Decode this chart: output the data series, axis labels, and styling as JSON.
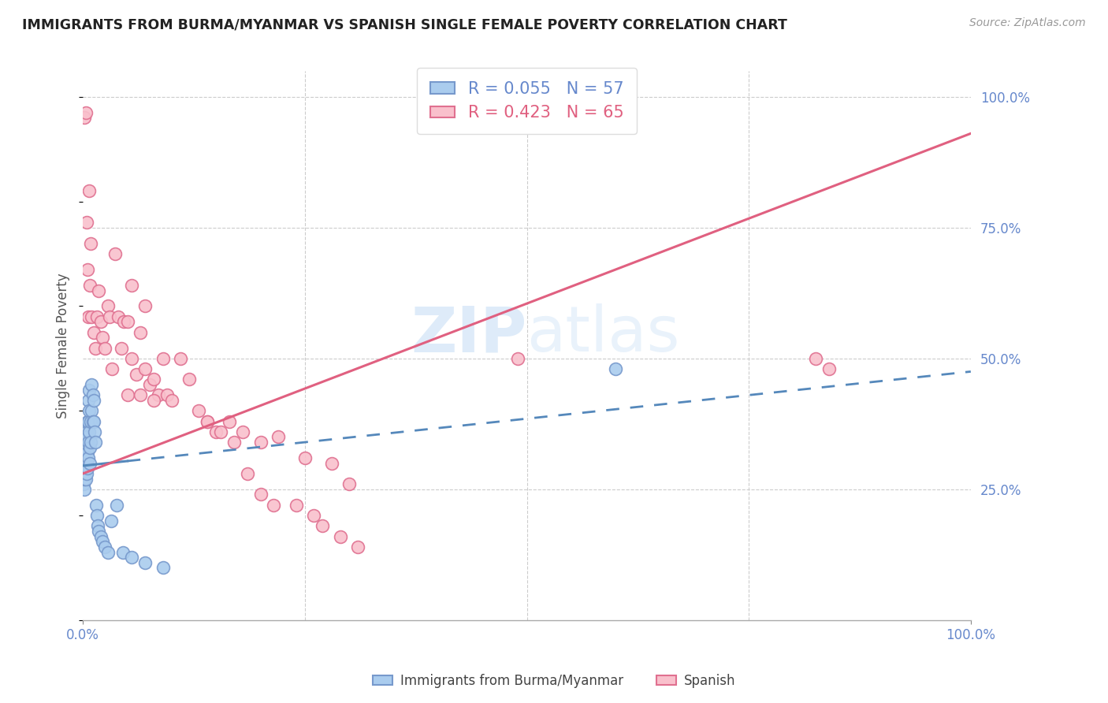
{
  "title": "IMMIGRANTS FROM BURMA/MYANMAR VS SPANISH SINGLE FEMALE POVERTY CORRELATION CHART",
  "source": "Source: ZipAtlas.com",
  "ylabel": "Single Female Poverty",
  "watermark_zip": "ZIP",
  "watermark_atlas": "atlas",
  "r_burma": 0.055,
  "n_burma": 57,
  "r_spanish": 0.423,
  "n_spanish": 65,
  "xlim": [
    0.0,
    1.0
  ],
  "ylim": [
    0.0,
    1.05
  ],
  "color_burma_fill": "#AACCEE",
  "color_burma_edge": "#7799CC",
  "color_spanish_fill": "#F9C0CC",
  "color_spanish_edge": "#E07090",
  "color_burma_line": "#5588BB",
  "color_spanish_line": "#E06080",
  "color_axis": "#6688CC",
  "legend_labels": [
    "Immigrants from Burma/Myanmar",
    "Spanish"
  ],
  "burma_x": [
    0.001,
    0.001,
    0.001,
    0.001,
    0.002,
    0.002,
    0.002,
    0.002,
    0.002,
    0.003,
    0.003,
    0.003,
    0.003,
    0.003,
    0.003,
    0.004,
    0.004,
    0.004,
    0.004,
    0.005,
    0.005,
    0.005,
    0.005,
    0.006,
    0.006,
    0.006,
    0.006,
    0.007,
    0.007,
    0.007,
    0.008,
    0.008,
    0.009,
    0.009,
    0.01,
    0.01,
    0.011,
    0.011,
    0.012,
    0.012,
    0.013,
    0.014,
    0.015,
    0.016,
    0.017,
    0.018,
    0.02,
    0.022,
    0.025,
    0.028,
    0.032,
    0.038,
    0.045,
    0.055,
    0.07,
    0.09,
    0.6
  ],
  "burma_y": [
    0.28,
    0.32,
    0.3,
    0.26,
    0.35,
    0.3,
    0.28,
    0.25,
    0.27,
    0.34,
    0.31,
    0.29,
    0.27,
    0.32,
    0.3,
    0.36,
    0.33,
    0.3,
    0.28,
    0.38,
    0.35,
    0.32,
    0.29,
    0.42,
    0.38,
    0.34,
    0.31,
    0.44,
    0.4,
    0.36,
    0.33,
    0.3,
    0.38,
    0.34,
    0.45,
    0.4,
    0.43,
    0.38,
    0.42,
    0.38,
    0.36,
    0.34,
    0.22,
    0.2,
    0.18,
    0.17,
    0.16,
    0.15,
    0.14,
    0.13,
    0.19,
    0.22,
    0.13,
    0.12,
    0.11,
    0.1,
    0.48
  ],
  "spanish_x": [
    0.002,
    0.003,
    0.004,
    0.005,
    0.006,
    0.007,
    0.008,
    0.009,
    0.01,
    0.012,
    0.014,
    0.016,
    0.018,
    0.02,
    0.022,
    0.025,
    0.028,
    0.03,
    0.033,
    0.036,
    0.04,
    0.043,
    0.046,
    0.05,
    0.055,
    0.06,
    0.065,
    0.07,
    0.075,
    0.08,
    0.085,
    0.09,
    0.095,
    0.1,
    0.11,
    0.12,
    0.13,
    0.14,
    0.15,
    0.165,
    0.18,
    0.2,
    0.22,
    0.25,
    0.28,
    0.3,
    0.14,
    0.155,
    0.17,
    0.185,
    0.2,
    0.215,
    0.05,
    0.065,
    0.08,
    0.055,
    0.07,
    0.24,
    0.26,
    0.27,
    0.29,
    0.31,
    0.825,
    0.84,
    0.49
  ],
  "spanish_y": [
    0.96,
    0.97,
    0.76,
    0.67,
    0.58,
    0.82,
    0.64,
    0.72,
    0.58,
    0.55,
    0.52,
    0.58,
    0.63,
    0.57,
    0.54,
    0.52,
    0.6,
    0.58,
    0.48,
    0.7,
    0.58,
    0.52,
    0.57,
    0.43,
    0.5,
    0.47,
    0.43,
    0.48,
    0.45,
    0.46,
    0.43,
    0.5,
    0.43,
    0.42,
    0.5,
    0.46,
    0.4,
    0.38,
    0.36,
    0.38,
    0.36,
    0.34,
    0.35,
    0.31,
    0.3,
    0.26,
    0.38,
    0.36,
    0.34,
    0.28,
    0.24,
    0.22,
    0.57,
    0.55,
    0.42,
    0.64,
    0.6,
    0.22,
    0.2,
    0.18,
    0.16,
    0.14,
    0.5,
    0.48,
    0.5
  ],
  "solid_line_x_end": 0.05,
  "burma_line_y_at_0": 0.295,
  "burma_line_slope": 0.18,
  "spanish_line_y_at_0": 0.28,
  "spanish_line_slope": 0.65
}
